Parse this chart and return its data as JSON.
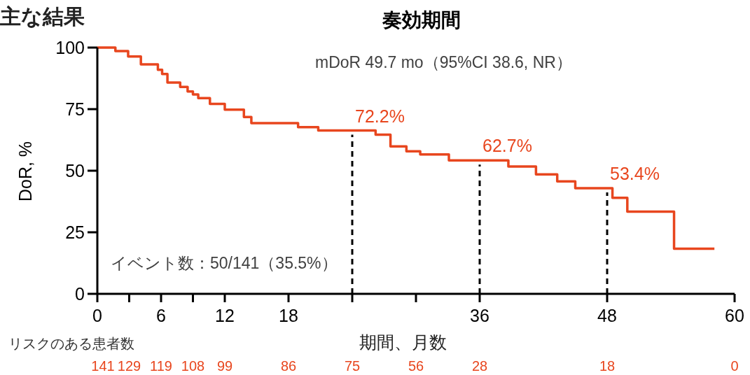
{
  "chart_data": {
    "type": "step",
    "title": "奏効期間",
    "xlabel": "期間、月数",
    "ylabel": "DoR, %",
    "x": [
      0,
      1.7,
      2.9,
      4.1,
      5.7,
      6.1,
      6.6,
      7.8,
      8.5,
      9.0,
      9.5,
      10.6,
      12.0,
      13.8,
      14.5,
      18.9,
      20.8,
      26.2,
      27.6,
      29.1,
      30.4,
      33.1,
      38.7,
      41.3,
      43.3,
      45.0,
      48.5,
      49.9,
      54.3,
      58.1
    ],
    "series": [
      {
        "color": "#e8461e",
        "values": [
          100,
          98.6,
          96.4,
          93.2,
          91,
          89.3,
          85.8,
          84,
          82.2,
          81,
          79.5,
          77.1,
          74.8,
          71.8,
          69.3,
          67.7,
          66.3,
          64.6,
          59.9,
          57.9,
          56.6,
          54.2,
          51.7,
          48.5,
          45.7,
          42.9,
          39,
          33.4,
          18.3,
          18.3
        ]
      }
    ],
    "xlim": [
      0,
      60
    ],
    "xticks": [
      0,
      {
        "value": 3,
        "label": null
      },
      6,
      {
        "value": 9,
        "label": null
      },
      12,
      18,
      {
        "value": 24,
        "label": null
      },
      {
        "value": 30,
        "label": null
      },
      36,
      48,
      60
    ],
    "ylim": [
      0,
      100
    ],
    "yticks": [
      0,
      25,
      50,
      75,
      100
    ],
    "ref_lines": [
      {
        "axis": "x",
        "value": 24,
        "color": "#000000",
        "line_style": "dashed"
      },
      {
        "axis": "x",
        "value": 36,
        "color": "#000000",
        "line_style": "dashed"
      },
      {
        "axis": "x",
        "value": 48,
        "color": "#000000",
        "line_style": "dashed"
      }
    ],
    "annotations": [
      "主な結果",
      "mDoR 49.7 mo（95%CI 38.6, NR）",
      "イベント数：50/141（35.5%）",
      "リスクのある患者数",
      "72.2%",
      "62.7%",
      "53.4%",
      "141",
      "129",
      "119",
      "108",
      "99",
      "86",
      "75",
      "56",
      "28",
      "18",
      "0"
    ]
  }
}
